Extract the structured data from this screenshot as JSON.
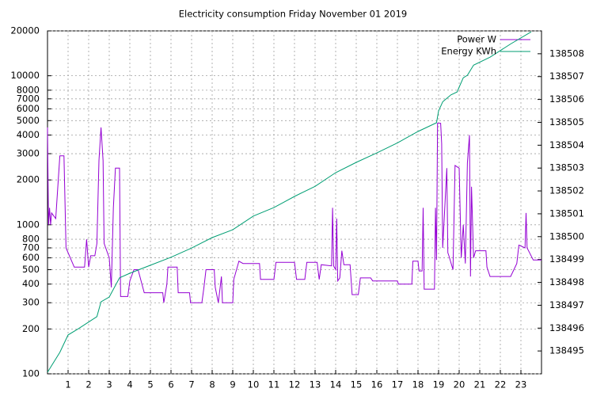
{
  "chart_data": {
    "type": "line",
    "title": "Electricity consumption Friday November 01 2019",
    "xlim": [
      0,
      24
    ],
    "xticks": [
      1,
      2,
      3,
      4,
      5,
      6,
      7,
      8,
      9,
      10,
      11,
      12,
      13,
      14,
      15,
      16,
      17,
      18,
      19,
      20,
      21,
      22,
      23
    ],
    "ylim": [
      100,
      20000
    ],
    "ylog": true,
    "yticks": [
      100,
      200,
      300,
      400,
      500,
      600,
      700,
      800,
      1000,
      2000,
      3000,
      4000,
      5000,
      6000,
      7000,
      8000,
      10000,
      20000
    ],
    "y2lim": [
      138494,
      138509
    ],
    "y2ticks": [
      138495,
      138496,
      138497,
      138498,
      138499,
      138500,
      138501,
      138502,
      138503,
      138504,
      138505,
      138506,
      138507,
      138508
    ],
    "grid": true,
    "legend": "top-right",
    "series": [
      {
        "name": "Power W",
        "color": "#9400d3",
        "x": [
          0,
          0.05,
          0.1,
          0.15,
          0.2,
          0.4,
          0.6,
          0.8,
          0.9,
          1.3,
          1.8,
          1.9,
          2.0,
          2.1,
          2.3,
          2.4,
          2.5,
          2.6,
          2.7,
          2.75,
          3.0,
          3.1,
          3.2,
          3.3,
          3.5,
          3.55,
          3.9,
          4.0,
          4.2,
          4.4,
          4.7,
          5.6,
          5.65,
          5.8,
          5.85,
          6.3,
          6.35,
          6.9,
          6.95,
          7.5,
          7.6,
          7.7,
          8.1,
          8.15,
          8.3,
          8.45,
          8.5,
          9.0,
          9.05,
          9.3,
          9.5,
          10.3,
          10.35,
          11.0,
          11.1,
          12.0,
          12.1,
          12.5,
          12.6,
          13.1,
          13.2,
          13.3,
          13.8,
          13.85,
          13.9,
          14.0,
          14.05,
          14.1,
          14.2,
          14.3,
          14.4,
          14.7,
          14.8,
          15.1,
          15.2,
          15.7,
          15.8,
          17.0,
          17.05,
          17.7,
          17.75,
          18.0,
          18.05,
          18.2,
          18.25,
          18.3,
          18.8,
          18.85,
          18.9,
          18.95,
          19.1,
          19.15,
          19.2,
          19.4,
          19.45,
          19.5,
          19.7,
          19.8,
          20.0,
          20.1,
          20.2,
          20.3,
          20.4,
          20.5,
          20.55,
          20.6,
          20.7,
          20.8,
          21.3,
          21.35,
          21.5,
          22.5,
          22.8,
          22.9,
          23.2,
          23.25,
          23.3,
          23.6,
          24
        ],
        "values": [
          4500,
          1000,
          1300,
          1000,
          1200,
          1100,
          2900,
          2900,
          700,
          520,
          520,
          800,
          520,
          620,
          620,
          750,
          2700,
          4500,
          2700,
          750,
          600,
          380,
          1300,
          2400,
          2400,
          330,
          330,
          420,
          500,
          500,
          350,
          350,
          300,
          400,
          520,
          520,
          350,
          350,
          300,
          300,
          380,
          500,
          500,
          380,
          300,
          450,
          300,
          300,
          430,
          570,
          550,
          550,
          430,
          430,
          560,
          560,
          430,
          430,
          560,
          560,
          430,
          540,
          530,
          1300,
          530,
          500,
          1100,
          420,
          440,
          670,
          540,
          540,
          340,
          340,
          440,
          440,
          420,
          420,
          400,
          400,
          570,
          570,
          490,
          490,
          1300,
          370,
          370,
          1300,
          580,
          4800,
          4800,
          3500,
          700,
          2400,
          650,
          620,
          500,
          2500,
          2400,
          600,
          1000,
          550,
          2600,
          4000,
          450,
          1800,
          600,
          670,
          670,
          520,
          450,
          450,
          550,
          730,
          700,
          1200,
          700,
          580,
          580
        ]
      },
      {
        "name": "Energy KWh",
        "color": "#009e73",
        "axis": "y2",
        "x": [
          0,
          0.6,
          1.0,
          1.5,
          2.4,
          2.6,
          3.0,
          3.5,
          4.0,
          5.0,
          6.0,
          7.0,
          8.0,
          9.0,
          10.0,
          11.0,
          12.0,
          13.0,
          14.0,
          15.0,
          16.0,
          17.0,
          18.0,
          18.9,
          19.0,
          19.2,
          19.6,
          19.9,
          20.0,
          20.2,
          20.4,
          20.7,
          21.5,
          22.5,
          23.5
        ],
        "values": [
          138494.07,
          138494.94,
          138495.7,
          138495.97,
          138496.5,
          138497.15,
          138497.36,
          138498.2,
          138498.4,
          138498.75,
          138499.1,
          138499.5,
          138499.96,
          138500.3,
          138500.9,
          138501.27,
          138501.76,
          138502.2,
          138502.8,
          138503.25,
          138503.66,
          138504.1,
          138504.6,
          138504.98,
          138505.5,
          138505.9,
          138506.2,
          138506.33,
          138506.54,
          138506.95,
          138507.06,
          138507.5,
          138507.85,
          138508.43,
          138508.96
        ]
      }
    ]
  }
}
